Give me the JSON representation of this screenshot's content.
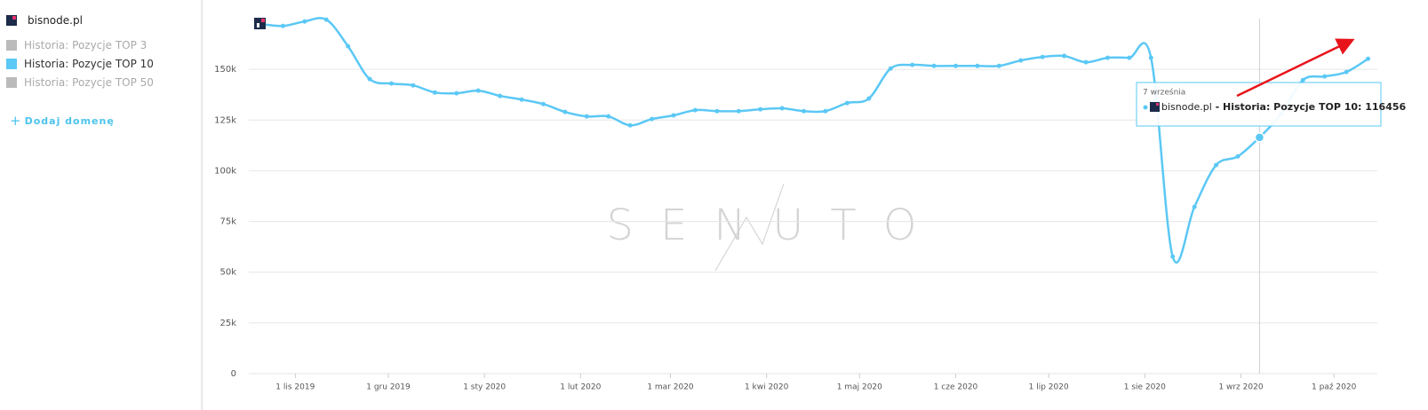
{
  "sidebar": {
    "domain": "bisnode.pl",
    "add_domain": "Dodaj domenę"
  },
  "chart_data": {
    "type": "line",
    "watermark": "SENUTO",
    "xlim": [
      "2019-10-17",
      "2020-10-15"
    ],
    "xticks": [
      {
        "value": "2019-11-01",
        "label": "1 lis 2019"
      },
      {
        "value": "2019-12-01",
        "label": "1 gru 2019"
      },
      {
        "value": "2020-01-01",
        "label": "1 sty 2020"
      },
      {
        "value": "2020-02-01",
        "label": "1 lut 2020"
      },
      {
        "value": "2020-03-01",
        "label": "1 mar 2020"
      },
      {
        "value": "2020-04-01",
        "label": "1 kwi 2020"
      },
      {
        "value": "2020-05-01",
        "label": "1 maj 2020"
      },
      {
        "value": "2020-06-01",
        "label": "1 cze 2020"
      },
      {
        "value": "2020-07-01",
        "label": "1 lip 2020"
      },
      {
        "value": "2020-08-01",
        "label": "1 sie 2020"
      },
      {
        "value": "2020-09-01",
        "label": "1 wrz 2020"
      },
      {
        "value": "2020-10-01",
        "label": "1 paź 2020"
      }
    ],
    "ylim": [
      0,
      175000
    ],
    "yticks": [
      0,
      {
        "value": 25000,
        "label": "25k"
      },
      {
        "value": 50000,
        "label": "50k"
      },
      {
        "value": 75000,
        "label": "75k"
      },
      {
        "value": 100000,
        "label": "100k"
      },
      {
        "value": 125000,
        "label": "125k"
      },
      {
        "value": 150000,
        "label": "150k"
      }
    ],
    "grid": true,
    "x": [
      "2019-10-21",
      "2019-10-28",
      "2019-11-04",
      "2019-11-11",
      "2019-11-18",
      "2019-11-25",
      "2019-12-02",
      "2019-12-09",
      "2019-12-16",
      "2019-12-23",
      "2019-12-30",
      "2020-01-06",
      "2020-01-13",
      "2020-01-20",
      "2020-01-27",
      "2020-02-03",
      "2020-02-10",
      "2020-02-17",
      "2020-02-24",
      "2020-03-02",
      "2020-03-09",
      "2020-03-16",
      "2020-03-23",
      "2020-03-30",
      "2020-04-06",
      "2020-04-13",
      "2020-04-20",
      "2020-04-27",
      "2020-05-04",
      "2020-05-11",
      "2020-05-18",
      "2020-05-25",
      "2020-06-01",
      "2020-06-08",
      "2020-06-15",
      "2020-06-22",
      "2020-06-29",
      "2020-07-06",
      "2020-07-13",
      "2020-07-20",
      "2020-07-27",
      "2020-08-03",
      "2020-08-10",
      "2020-08-17",
      "2020-08-24",
      "2020-08-31",
      "2020-09-07",
      "2020-09-14",
      "2020-09-21",
      "2020-09-28",
      "2020-10-05",
      "2020-10-12"
    ],
    "series": [
      {
        "name": "Historia: Pozycje TOP 3",
        "color": "#bbbbbb",
        "visible": false
      },
      {
        "name": "Historia: Pozycje TOP 10",
        "color": "#5bc8f5",
        "visible": true,
        "values": [
          172300,
          171400,
          173600,
          174500,
          161400,
          145200,
          143000,
          142100,
          138600,
          138200,
          139500,
          136900,
          135100,
          132900,
          129000,
          126800,
          126800,
          122400,
          125500,
          127300,
          129900,
          129400,
          129400,
          130300,
          130800,
          129400,
          129400,
          133400,
          135600,
          150400,
          152200,
          151700,
          151700,
          151700,
          151700,
          154400,
          156100,
          156600,
          153500,
          155700,
          155700,
          155700,
          57700,
          82200,
          102800,
          107100,
          116456,
          128000,
          144700,
          146500,
          148700,
          155200
        ]
      },
      {
        "name": "Historia: Pozycje TOP 50",
        "color": "#bbbbbb",
        "visible": false
      }
    ],
    "tooltip": {
      "date": "7 września"
    }
  }
}
